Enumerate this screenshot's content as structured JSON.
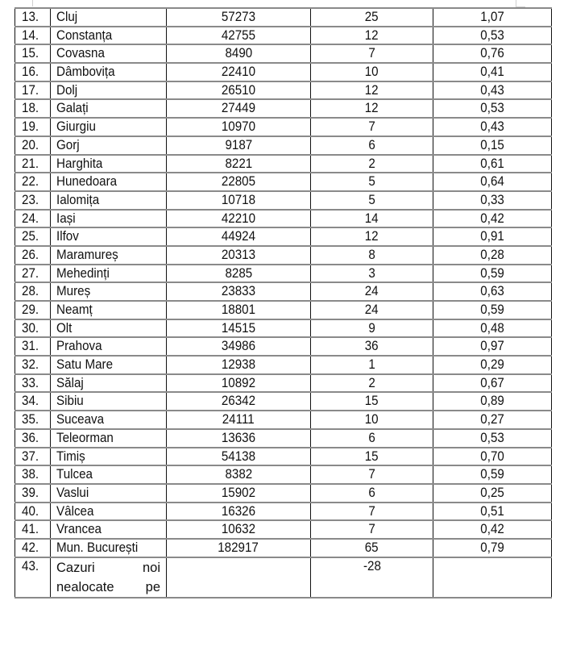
{
  "table": {
    "rows": [
      {
        "no": "13.",
        "name": "Cluj",
        "pop": "57273",
        "cases": "25",
        "rate": "1,07"
      },
      {
        "no": "14.",
        "name": "Constanța",
        "pop": "42755",
        "cases": "12",
        "rate": "0,53"
      },
      {
        "no": "15.",
        "name": "Covasna",
        "pop": "8490",
        "cases": "7",
        "rate": "0,76"
      },
      {
        "no": "16.",
        "name": "Dâmbovița",
        "pop": "22410",
        "cases": "10",
        "rate": "0,41"
      },
      {
        "no": "17.",
        "name": "Dolj",
        "pop": "26510",
        "cases": "12",
        "rate": "0,43"
      },
      {
        "no": "18.",
        "name": "Galați",
        "pop": "27449",
        "cases": "12",
        "rate": "0,53"
      },
      {
        "no": "19.",
        "name": "Giurgiu",
        "pop": "10970",
        "cases": "7",
        "rate": "0,43"
      },
      {
        "no": "20.",
        "name": "Gorj",
        "pop": "9187",
        "cases": "6",
        "rate": "0,15"
      },
      {
        "no": "21.",
        "name": "Harghita",
        "pop": "8221",
        "cases": "2",
        "rate": "0,61"
      },
      {
        "no": "22.",
        "name": "Hunedoara",
        "pop": "22805",
        "cases": "5",
        "rate": "0,64"
      },
      {
        "no": "23.",
        "name": "Ialomița",
        "pop": "10718",
        "cases": "5",
        "rate": "0,33"
      },
      {
        "no": "24.",
        "name": "Iași",
        "pop": "42210",
        "cases": "14",
        "rate": "0,42"
      },
      {
        "no": "25.",
        "name": "Ilfov",
        "pop": "44924",
        "cases": "12",
        "rate": "0,91"
      },
      {
        "no": "26.",
        "name": "Maramureș",
        "pop": "20313",
        "cases": "8",
        "rate": "0,28"
      },
      {
        "no": "27.",
        "name": "Mehedinți",
        "pop": "8285",
        "cases": "3",
        "rate": "0,59"
      },
      {
        "no": "28.",
        "name": "Mureș",
        "pop": "23833",
        "cases": "24",
        "rate": "0,63"
      },
      {
        "no": "29.",
        "name": "Neamț",
        "pop": "18801",
        "cases": "24",
        "rate": "0,59"
      },
      {
        "no": "30.",
        "name": "Olt",
        "pop": "14515",
        "cases": "9",
        "rate": "0,48"
      },
      {
        "no": "31.",
        "name": "Prahova",
        "pop": "34986",
        "cases": "36",
        "rate": "0,97"
      },
      {
        "no": "32.",
        "name": "Satu Mare",
        "pop": "12938",
        "cases": "1",
        "rate": "0,29"
      },
      {
        "no": "33.",
        "name": "Sălaj",
        "pop": "10892",
        "cases": "2",
        "rate": "0,67"
      },
      {
        "no": "34.",
        "name": "Sibiu",
        "pop": "26342",
        "cases": "15",
        "rate": "0,89"
      },
      {
        "no": "35.",
        "name": "Suceava",
        "pop": "24111",
        "cases": "10",
        "rate": "0,27"
      },
      {
        "no": "36.",
        "name": "Teleorman",
        "pop": "13636",
        "cases": "6",
        "rate": "0,53"
      },
      {
        "no": "37.",
        "name": "Timiș",
        "pop": "54138",
        "cases": "15",
        "rate": "0,70"
      },
      {
        "no": "38.",
        "name": "Tulcea",
        "pop": "8382",
        "cases": "7",
        "rate": "0,59"
      },
      {
        "no": "39.",
        "name": "Vaslui",
        "pop": "15902",
        "cases": "6",
        "rate": "0,25"
      },
      {
        "no": "40.",
        "name": "Vâlcea",
        "pop": "16326",
        "cases": "7",
        "rate": "0,51"
      },
      {
        "no": "41.",
        "name": "Vrancea",
        "pop": "10632",
        "cases": "7",
        "rate": "0,42"
      },
      {
        "no": "42.",
        "name": "Mun. București",
        "pop": "182917",
        "cases": "65",
        "rate": "0,79"
      },
      {
        "no": "43.",
        "name": "Cazuri noi nealocate pe",
        "pop": "",
        "cases": "-28",
        "rate": ""
      }
    ]
  }
}
